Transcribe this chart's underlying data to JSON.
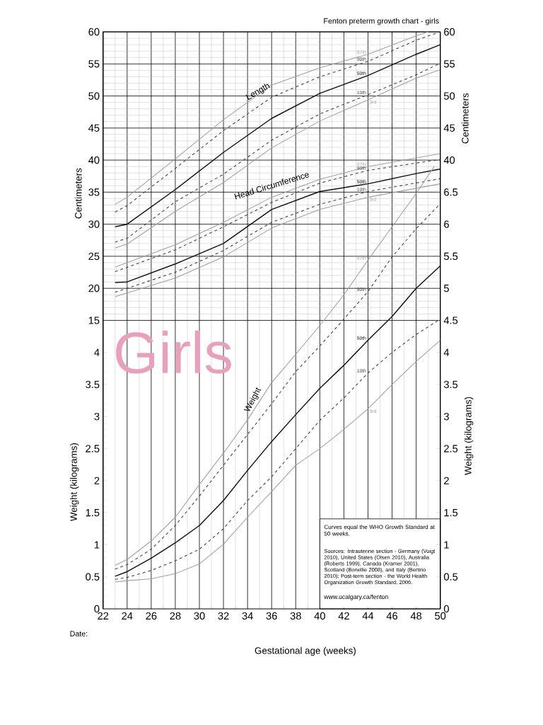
{
  "chart_data": [
    {
      "type": "line",
      "title": "Fenton preterm growth chart - girls",
      "xlabel": "Gestational age (weeks)",
      "ylabel": "Centimeters",
      "y2label": "Centimeters",
      "xlim": [
        22,
        50
      ],
      "xticks": [
        22,
        24,
        26,
        28,
        30,
        32,
        34,
        36,
        38,
        40,
        42,
        44,
        46,
        48,
        50
      ],
      "ylim": [
        -30,
        60
      ],
      "yticks": [
        15,
        20,
        25,
        30,
        35,
        40,
        45,
        50,
        55,
        60
      ],
      "y2lim": [
        -30,
        60
      ],
      "y2ticks": [
        40,
        45,
        50,
        55,
        60
      ],
      "grid": true,
      "marker": "none",
      "annotations": [
        "Length",
        "Head Circumference",
        "Girls",
        "Curves equal the WHO Growth Standard at 50 weeks.",
        "Sources: Intrauterine section - Germany (Voigt 2010), United States (Olsen 2010), Australia (Roberts 1999), Canada (Kramer 2001), Scotland (Bonellie 2008), and Italy (Bertino 2010); Post-term section - the World Health Organization Growth Standard, 2006.",
        "www.ucalgary.ca/fenton",
        "Date:"
      ],
      "series": [
        {
          "name": "97th",
          "color": "#a0a0a0",
          "line_style": "solid",
          "x": [
            23,
            24,
            28,
            32,
            36,
            40,
            44,
            48,
            49
          ],
          "values": [
            33.1,
            34.2,
            40.2,
            46.3,
            51.7,
            54.4,
            56.5,
            59.4,
            60
          ]
        },
        {
          "name": "90th",
          "color": "#404040",
          "line_style": "dashed",
          "x": [
            23,
            24,
            28,
            32,
            36,
            40,
            44,
            48,
            50
          ],
          "values": [
            31.9,
            32.9,
            38.7,
            44.6,
            49.8,
            53.0,
            55.4,
            58.7,
            60
          ]
        },
        {
          "name": "50th",
          "color": "#111111",
          "line_style": "solid",
          "x": [
            23,
            24,
            28,
            30,
            32,
            36,
            40,
            44,
            48,
            50
          ],
          "values": [
            29.6,
            30.0,
            35.4,
            38.3,
            41.2,
            46.5,
            50.4,
            53.2,
            56.5,
            58.0
          ]
        },
        {
          "name": "10th",
          "color": "#404040",
          "line_style": "dashed",
          "x": [
            23,
            24,
            28,
            32,
            36,
            40,
            44,
            48,
            50
          ],
          "values": [
            27.2,
            27.8,
            33.5,
            37.8,
            43.1,
            47.2,
            50.2,
            53.3,
            55.1
          ]
        },
        {
          "name": "3rd",
          "color": "#a0a0a0",
          "line_style": "solid",
          "x": [
            23,
            24,
            28,
            32,
            36,
            40,
            44,
            48,
            50
          ],
          "values": [
            26.3,
            26.9,
            32.0,
            36.5,
            41.9,
            46.1,
            49.4,
            52.8,
            54.1
          ]
        },
        {
          "name": "97th",
          "color": "#a0a0a0",
          "line_style": "solid",
          "x": [
            23,
            28,
            32,
            36,
            40,
            44,
            50
          ],
          "values": [
            23.3,
            26.8,
            30.3,
            34.2,
            37.0,
            39.0,
            41.0
          ]
        },
        {
          "name": "90th",
          "color": "#404040",
          "line_style": "dashed",
          "x": [
            23,
            28,
            32,
            36,
            40,
            44,
            50
          ],
          "values": [
            22.6,
            26.0,
            29.6,
            33.4,
            36.4,
            38.4,
            40.1
          ]
        },
        {
          "name": "50th",
          "color": "#111111",
          "line_style": "solid",
          "x": [
            23,
            24,
            28,
            32,
            36,
            40,
            44,
            48,
            50
          ],
          "values": [
            20.9,
            21.0,
            23.8,
            27.0,
            32.3,
            35.1,
            36.3,
            37.9,
            38.6
          ]
        },
        {
          "name": "10th",
          "color": "#404040",
          "line_style": "dashed",
          "x": [
            23,
            28,
            32,
            36,
            40,
            44,
            50
          ],
          "values": [
            19.4,
            22.5,
            25.9,
            30.3,
            33.1,
            35.1,
            37.1
          ]
        },
        {
          "name": "3rd",
          "color": "#a0a0a0",
          "line_style": "solid",
          "x": [
            23,
            28,
            32,
            36,
            40,
            44,
            50
          ],
          "values": [
            18.7,
            21.6,
            24.9,
            29.4,
            32.3,
            34.2,
            36.3
          ]
        }
      ]
    },
    {
      "type": "line",
      "ylabel": "Weight (kilograms)",
      "y2label": "Weight (kilograms)",
      "tick_labels": "y",
      "xlim": [
        22,
        50
      ],
      "ylim": [
        0,
        9
      ],
      "yticks": [
        0,
        0.5,
        1,
        1.5,
        2,
        2.5,
        3,
        3.5,
        4
      ],
      "y2lim": [
        0,
        9
      ],
      "y2ticks": [
        0,
        0.5,
        1,
        1.5,
        2,
        2.5,
        3,
        3.5,
        4,
        4.5,
        5,
        5.5,
        6,
        6.5
      ],
      "marker": "none",
      "annotations": [
        "Weight"
      ],
      "series": [
        {
          "name": "97th",
          "color": "#a0a0a0",
          "line_style": "solid",
          "x": [
            23,
            24,
            26,
            28,
            30,
            32,
            34,
            36,
            38,
            40,
            42,
            44,
            46,
            48,
            49.5
          ],
          "values": [
            0.68,
            0.77,
            1.06,
            1.43,
            1.94,
            2.43,
            2.95,
            3.53,
            3.97,
            4.42,
            4.9,
            5.44,
            5.96,
            6.48,
            6.9
          ]
        },
        {
          "name": "90th",
          "color": "#404040",
          "line_style": "dashed",
          "x": [
            23,
            24,
            26,
            28,
            30,
            32,
            34,
            36,
            38,
            40,
            42,
            44,
            46,
            48,
            50
          ],
          "values": [
            0.62,
            0.69,
            0.93,
            1.3,
            1.76,
            2.24,
            2.72,
            3.2,
            3.7,
            4.1,
            4.52,
            4.95,
            5.49,
            5.93,
            6.32
          ]
        },
        {
          "name": "50th",
          "color": "#111111",
          "line_style": "solid",
          "x": [
            23,
            24,
            26,
            28,
            30,
            32,
            34,
            36,
            38,
            40,
            42,
            44,
            46,
            48,
            50
          ],
          "values": [
            0.51,
            0.58,
            0.79,
            1.03,
            1.3,
            1.69,
            2.16,
            2.61,
            3.03,
            3.44,
            3.8,
            4.19,
            4.56,
            5.0,
            5.35
          ]
        },
        {
          "name": "10th",
          "color": "#404040",
          "line_style": "dashed",
          "x": [
            23,
            24,
            26,
            28,
            30,
            32,
            34,
            36,
            38,
            40,
            42,
            44,
            46,
            48,
            50
          ],
          "values": [
            0.46,
            0.49,
            0.6,
            0.75,
            0.93,
            1.25,
            1.69,
            2.06,
            2.5,
            2.94,
            3.29,
            3.68,
            4.0,
            4.28,
            4.52
          ]
        },
        {
          "name": "3rd",
          "color": "#a0a0a0",
          "line_style": "solid",
          "x": [
            23,
            24,
            26,
            28,
            30,
            32,
            34,
            36,
            38,
            40,
            42,
            44,
            46,
            48,
            50
          ],
          "values": [
            0.42,
            0.44,
            0.47,
            0.55,
            0.7,
            1.01,
            1.43,
            1.83,
            2.24,
            2.5,
            2.8,
            3.12,
            3.5,
            3.86,
            4.19
          ]
        }
      ]
    }
  ]
}
